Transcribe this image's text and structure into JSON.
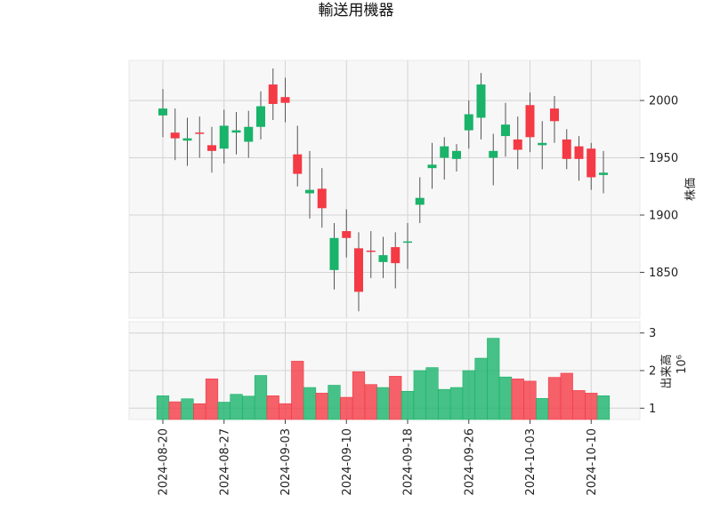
{
  "chart_data": {
    "type": "candlestick",
    "title": "輸送用機器",
    "price_axis_label": "株価",
    "volume_axis_label": "出来高",
    "volume_multiplier_label": "10⁶",
    "up_color": "#19b36a",
    "down_color": "#f43a45",
    "price_ylim": [
      1810,
      2035
    ],
    "price_ticks": [
      1850,
      1900,
      1950,
      2000
    ],
    "volume_ylim": [
      0.7,
      3.3
    ],
    "volume_ticks": [
      1,
      2,
      3
    ],
    "x_tick_labels": [
      {
        "index": 0,
        "label": "2024-08-20"
      },
      {
        "index": 5,
        "label": "2024-08-27"
      },
      {
        "index": 10,
        "label": "2024-09-03"
      },
      {
        "index": 15,
        "label": "2024-09-10"
      },
      {
        "index": 20,
        "label": "2024-09-18"
      },
      {
        "index": 25,
        "label": "2024-09-26"
      },
      {
        "index": 30,
        "label": "2024-10-03"
      },
      {
        "index": 35,
        "label": "2024-10-10"
      }
    ],
    "candles": [
      {
        "open": 1987,
        "high": 2010,
        "low": 1968,
        "close": 1993,
        "volume": 1.33
      },
      {
        "open": 1972,
        "high": 1993,
        "low": 1948,
        "close": 1967,
        "volume": 1.17
      },
      {
        "open": 1965,
        "high": 1985,
        "low": 1943,
        "close": 1967,
        "volume": 1.25
      },
      {
        "open": 1972,
        "high": 1986,
        "low": 1950,
        "close": 1971,
        "volume": 1.12
      },
      {
        "open": 1961,
        "high": 1977,
        "low": 1937,
        "close": 1956,
        "volume": 1.78
      },
      {
        "open": 1958,
        "high": 1992,
        "low": 1945,
        "close": 1978,
        "volume": 1.16
      },
      {
        "open": 1972,
        "high": 1990,
        "low": 1953,
        "close": 1974,
        "volume": 1.37
      },
      {
        "open": 1964,
        "high": 1991,
        "low": 1950,
        "close": 1977,
        "volume": 1.32
      },
      {
        "open": 1977,
        "high": 2008,
        "low": 1966,
        "close": 1995,
        "volume": 1.87
      },
      {
        "open": 2014,
        "high": 2028,
        "low": 1983,
        "close": 1997,
        "volume": 1.33
      },
      {
        "open": 2003,
        "high": 2020,
        "low": 1981,
        "close": 1998,
        "volume": 1.12
      },
      {
        "open": 1953,
        "high": 1978,
        "low": 1925,
        "close": 1936,
        "volume": 2.25
      },
      {
        "open": 1919,
        "high": 1956,
        "low": 1897,
        "close": 1922,
        "volume": 1.55
      },
      {
        "open": 1923,
        "high": 1941,
        "low": 1889,
        "close": 1906,
        "volume": 1.4
      },
      {
        "open": 1852,
        "high": 1893,
        "low": 1835,
        "close": 1880,
        "volume": 1.61
      },
      {
        "open": 1886,
        "high": 1905,
        "low": 1863,
        "close": 1880,
        "volume": 1.29
      },
      {
        "open": 1871,
        "high": 1885,
        "low": 1816,
        "close": 1833,
        "volume": 1.97
      },
      {
        "open": 1869,
        "high": 1886,
        "low": 1845,
        "close": 1868,
        "volume": 1.63
      },
      {
        "open": 1859,
        "high": 1881,
        "low": 1845,
        "close": 1865,
        "volume": 1.55
      },
      {
        "open": 1872,
        "high": 1885,
        "low": 1836,
        "close": 1858,
        "volume": 1.85
      },
      {
        "open": 1876,
        "high": 1893,
        "low": 1853,
        "close": 1877,
        "volume": 1.45
      },
      {
        "open": 1909,
        "high": 1933,
        "low": 1893,
        "close": 1915,
        "volume": 2.0
      },
      {
        "open": 1941,
        "high": 1963,
        "low": 1923,
        "close": 1944,
        "volume": 2.08
      },
      {
        "open": 1950,
        "high": 1968,
        "low": 1931,
        "close": 1960,
        "volume": 1.5
      },
      {
        "open": 1949,
        "high": 1962,
        "low": 1938,
        "close": 1956,
        "volume": 1.55
      },
      {
        "open": 1974,
        "high": 2000,
        "low": 1958,
        "close": 1988,
        "volume": 2.0
      },
      {
        "open": 1985,
        "high": 2024,
        "low": 1966,
        "close": 2014,
        "volume": 2.33
      },
      {
        "open": 1950,
        "high": 1971,
        "low": 1926,
        "close": 1956,
        "volume": 2.86
      },
      {
        "open": 1969,
        "high": 1998,
        "low": 1951,
        "close": 1979,
        "volume": 1.83
      },
      {
        "open": 1966,
        "high": 1986,
        "low": 1940,
        "close": 1957,
        "volume": 1.78
      },
      {
        "open": 1996,
        "high": 2007,
        "low": 1955,
        "close": 1968,
        "volume": 1.72
      },
      {
        "open": 1961,
        "high": 1982,
        "low": 1940,
        "close": 1963,
        "volume": 1.26
      },
      {
        "open": 1993,
        "high": 2004,
        "low": 1963,
        "close": 1982,
        "volume": 1.82
      },
      {
        "open": 1966,
        "high": 1975,
        "low": 1940,
        "close": 1949,
        "volume": 1.93
      },
      {
        "open": 1960,
        "high": 1969,
        "low": 1930,
        "close": 1949,
        "volume": 1.47
      },
      {
        "open": 1958,
        "high": 1963,
        "low": 1922,
        "close": 1933,
        "volume": 1.4
      },
      {
        "open": 1935,
        "high": 1956,
        "low": 1919,
        "close": 1937,
        "volume": 1.33
      }
    ]
  }
}
